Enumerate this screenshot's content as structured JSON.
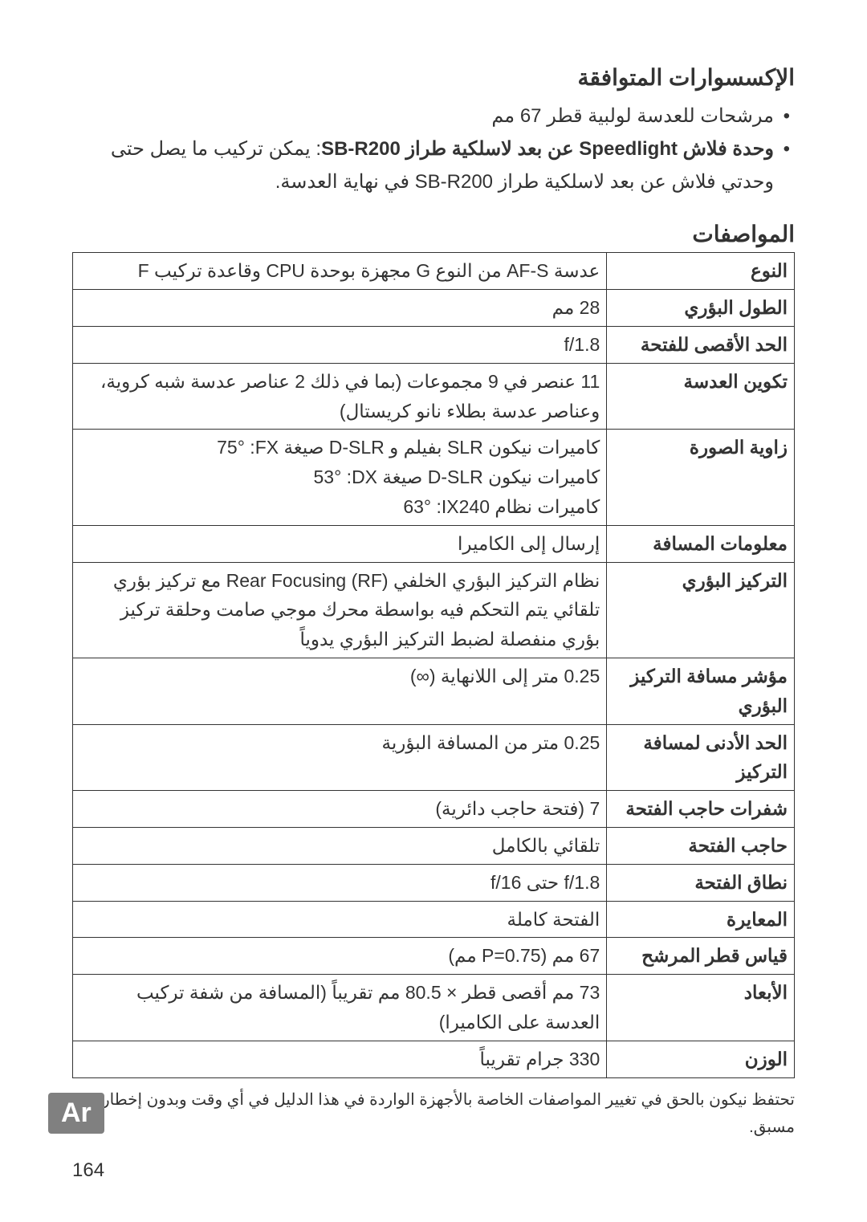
{
  "accessories": {
    "title": "الإكسسوارات المتوافقة",
    "items": [
      {
        "text": "مرشحات للعدسة لولبية قطر 67 مم"
      },
      {
        "html": "<span class='bold'>وحدة فلاش Speedlight عن بعد لاسلكية طراز SB-R200</span>: يمكن تركيب ما يصل حتى وحدتي فلاش عن بعد لاسلكية طراز SB-R200 في نهاية العدسة."
      }
    ]
  },
  "specs": {
    "title": "المواصفات",
    "rows": [
      {
        "label": "النوع",
        "value": "عدسة AF-S من النوع G مجهزة بوحدة CPU وقاعدة تركيب F"
      },
      {
        "label": "الطول البؤري",
        "value": "28 مم"
      },
      {
        "label": "الحد الأقصى للفتحة",
        "value": "f/1.8"
      },
      {
        "label": "تكوين العدسة",
        "value": "11 عنصر في 9 مجموعات (بما في ذلك 2 عناصر عدسة شبه كروية، وعناصر عدسة بطلاء نانو كريستال)"
      },
      {
        "label": "زاوية الصورة",
        "value": "كاميرات نيكون SLR بفيلم و D-SLR صيغة FX: &rlm;75°<br>كاميرات نيكون D-SLR صيغة DX: &rlm;53°<br>كاميرات نظام IX240: &rlm;63°"
      },
      {
        "label": "معلومات المسافة",
        "value": "إرسال إلى الكاميرا"
      },
      {
        "label": "التركيز البؤري",
        "value": "نظام التركيز البؤري الخلفي Rear Focusing (RF) مع تركيز بؤري تلقائي يتم التحكم فيه بواسطة محرك موجي صامت وحلقة تركيز بؤري منفصلة لضبط التركيز البؤري يدوياً"
      },
      {
        "label": "مؤشر مسافة التركيز البؤري",
        "value": "0.25 متر إلى اللانهاية (∞)"
      },
      {
        "label": "الحد الأدنى لمسافة التركيز",
        "value": "0.25 متر من المسافة البؤرية"
      },
      {
        "label": "شفرات حاجب الفتحة",
        "value": "7 (فتحة حاجب دائرية)"
      },
      {
        "label": "حاجب الفتحة",
        "value": "تلقائي بالكامل"
      },
      {
        "label": "نطاق الفتحة",
        "value": "f/1.8 حتى f/16"
      },
      {
        "label": "المعايرة",
        "value": "الفتحة كاملة"
      },
      {
        "label": "قياس قطر المرشح",
        "value": "67 مم (P=0.75 مم)"
      },
      {
        "label": "الأبعاد",
        "value": "73 مم أقصى قطر × 80.5 مم تقريباً (المسافة من شفة تركيب العدسة على الكاميرا)"
      },
      {
        "label": "الوزن",
        "value": "330 جرام تقريباً"
      }
    ],
    "footnote": "تحتفظ نيكون بالحق في تغيير المواصفات الخاصة بالأجهزة الواردة في هذا الدليل في أي وقت وبدون إخطار مسبق."
  },
  "lang_badge": "Ar",
  "page_number": "164"
}
